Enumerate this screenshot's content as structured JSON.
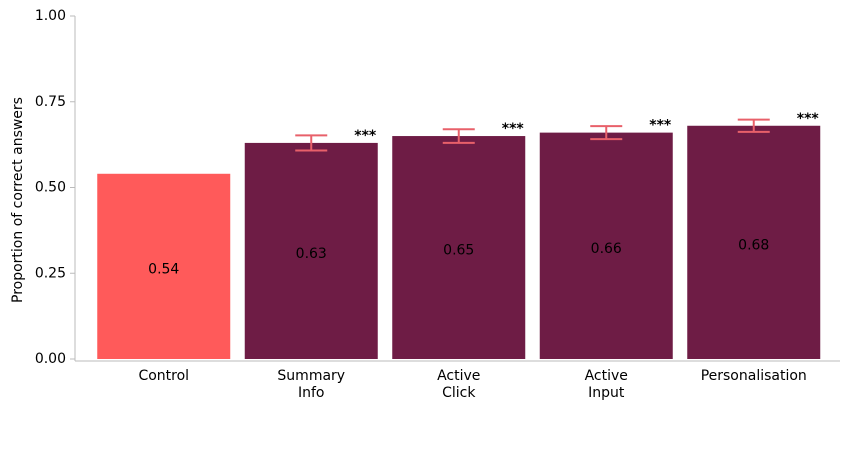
{
  "chart_data": {
    "type": "bar",
    "ylabel": "Proportion of correct answers",
    "categories": [
      [
        "Control"
      ],
      [
        "Summary",
        "Info"
      ],
      [
        "Active",
        "Click"
      ],
      [
        "Active",
        "Input"
      ],
      [
        "Personalisation"
      ]
    ],
    "values": [
      0.54,
      0.63,
      0.65,
      0.66,
      0.68
    ],
    "errors": [
      null,
      0.022,
      0.02,
      0.019,
      0.018
    ],
    "significance": [
      null,
      "***",
      "***",
      "***",
      "***"
    ],
    "colors": [
      "#ff5a5a",
      "#6e1c45",
      "#6e1c45",
      "#6e1c45",
      "#6e1c45"
    ],
    "error_color": "#e8606a",
    "ylim": [
      0,
      1
    ],
    "yticks": [
      {
        "value": 0,
        "label": "0.00"
      },
      {
        "value": 0.25,
        "label": "0.25"
      },
      {
        "value": 0.5,
        "label": "0.50"
      },
      {
        "value": 0.75,
        "label": "0.75"
      },
      {
        "value": 1,
        "label": "1.00"
      }
    ]
  }
}
